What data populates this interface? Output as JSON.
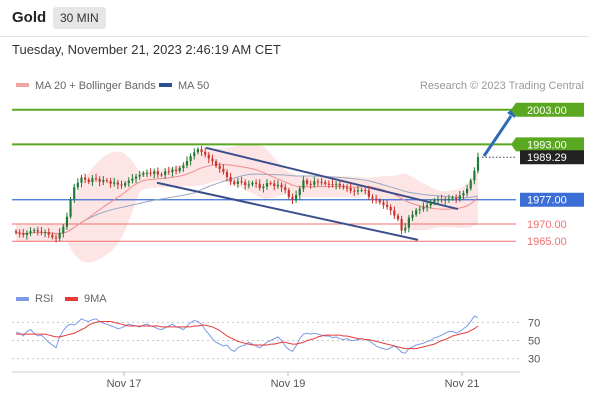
{
  "header": {
    "asset": "Gold",
    "timeframe": "30 MIN",
    "timestamp": "Tuesday, November 21, 2023 2:46:19 AM CET"
  },
  "legend": {
    "ma20_label": "MA 20 + Bollinger Bands",
    "ma50_label": "MA 50",
    "credit": "Research © 2023 Trading Central"
  },
  "rsi_legend": {
    "rsi_label": "RSI",
    "ma_label": "9MA"
  },
  "colors": {
    "bull": "#1e7a35",
    "bear": "#c8332c",
    "ma20": "#f08c8c",
    "bollinger": "#fde0e0",
    "ma50": "#9aa8c0",
    "channel": "#3a4f8c",
    "green_level": "#5aa820",
    "blue_level": "#3b6fd6",
    "red_level": "#f07070",
    "rsi": "#7b9be6",
    "rsi_ma": "#e83a3a",
    "arrow": "#2e6bb5",
    "price_tag": "#222222"
  },
  "chart_data": [
    {
      "type": "candlestick",
      "x_ticks": [
        "Nov 17",
        "Nov 19",
        "Nov 21"
      ],
      "y_range": [
        1955,
        2012
      ],
      "levels": [
        {
          "value": 2003.0,
          "label": "2003.00",
          "kind": "resistance",
          "color": "green"
        },
        {
          "value": 1993.0,
          "label": "1993.00",
          "kind": "resistance",
          "color": "green"
        },
        {
          "value": 1989.29,
          "label": "1989.29",
          "kind": "last_price",
          "color": "black"
        },
        {
          "value": 1977.0,
          "label": "1977.00",
          "kind": "pivot",
          "color": "blue"
        },
        {
          "value": 1970.0,
          "label": "1970.00",
          "kind": "support",
          "color": "red"
        },
        {
          "value": 1965.0,
          "label": "1965.00",
          "kind": "support",
          "color": "red"
        }
      ],
      "close": [
        1967.5,
        1967.2,
        1966.8,
        1967.4,
        1967.9,
        1968.2,
        1967.8,
        1967.5,
        1967.6,
        1966.9,
        1966.1,
        1965.8,
        1967.4,
        1969.2,
        1972.1,
        1977.2,
        1980.6,
        1981.9,
        1983.4,
        1982.8,
        1982.1,
        1983.2,
        1983.0,
        1982.2,
        1982.7,
        1982.4,
        1981.6,
        1982.0,
        1981.4,
        1981.1,
        1981.8,
        1982.5,
        1983.1,
        1983.7,
        1984.2,
        1984.7,
        1984.8,
        1984.5,
        1985.2,
        1984.3,
        1984.2,
        1985.2,
        1985.0,
        1985.7,
        1985.3,
        1986.2,
        1986.9,
        1988.2,
        1989.6,
        1990.7,
        1991.6,
        1990.8,
        1990.0,
        1988.9,
        1988.1,
        1986.8,
        1985.9,
        1985.0,
        1983.6,
        1982.2,
        1981.6,
        1982.3,
        1982.1,
        1981.2,
        1981.4,
        1981.9,
        1981.6,
        1980.4,
        1980.8,
        1981.8,
        1981.7,
        1980.9,
        1981.3,
        1980.6,
        1979.8,
        1977.8,
        1976.9,
        1978.3,
        1980.2,
        1982.6,
        1981.6,
        1981.3,
        1982.3,
        1982.2,
        1982.1,
        1981.6,
        1981.5,
        1981.3,
        1981.6,
        1981.0,
        1980.5,
        1980.4,
        1979.6,
        1979.4,
        1979.8,
        1979.8,
        1979.7,
        1977.8,
        1977.3,
        1976.8,
        1976.2,
        1975.5,
        1974.9,
        1973.9,
        1972.4,
        1971.4,
        1968.1,
        1968.9,
        1971.8,
        1972.7,
        1974.0,
        1974.3,
        1974.9,
        1975.4,
        1976.0,
        1976.9,
        1977.1,
        1976.9,
        1977.1,
        1977.3,
        1977.6,
        1977.2,
        1978.2,
        1978.9,
        1980.2,
        1982.6,
        1985.4,
        1989.3
      ]
    },
    {
      "type": "line",
      "name": "RSI",
      "y_ticks": [
        70,
        50,
        30
      ],
      "x_ticks": [
        "Nov 17",
        "Nov 19",
        "Nov 21"
      ],
      "reference_lines": [
        70,
        50,
        30
      ],
      "series": [
        {
          "name": "RSI",
          "values": [
            59,
            58,
            55,
            60,
            62,
            58,
            55,
            56,
            52,
            48,
            45,
            42,
            54,
            61,
            66,
            68,
            67,
            70,
            74,
            72,
            71,
            73,
            74,
            71,
            69,
            68,
            66,
            65,
            63,
            64,
            66,
            68,
            67,
            66,
            65,
            67,
            68,
            66,
            65,
            63,
            62,
            64,
            66,
            68,
            65,
            64,
            62,
            66,
            70,
            72,
            71,
            68,
            62,
            57,
            52,
            48,
            46,
            44,
            45,
            40,
            38,
            42,
            44,
            45,
            48,
            46,
            44,
            42,
            45,
            48,
            50,
            52,
            54,
            50,
            44,
            40,
            38,
            44,
            52,
            57,
            58,
            57,
            58,
            57,
            56,
            55,
            55,
            53,
            54,
            52,
            51,
            52,
            50,
            50,
            51,
            52,
            51,
            50,
            47,
            44,
            42,
            41,
            40,
            42,
            44,
            41,
            37,
            36,
            41,
            43,
            45,
            46,
            47,
            49,
            50,
            53,
            54,
            56,
            58,
            60,
            60,
            58,
            60,
            63,
            66,
            71,
            77,
            75
          ]
        },
        {
          "name": "9MA",
          "values": [
            57,
            57,
            57,
            57,
            57,
            57,
            57,
            57,
            57,
            56,
            55,
            54,
            54,
            55,
            56,
            57,
            58,
            60,
            62,
            64,
            67,
            69,
            70,
            71,
            71,
            71,
            71,
            70,
            69,
            68,
            67,
            66,
            66,
            66,
            66,
            66,
            66,
            66,
            66,
            66,
            65,
            65,
            65,
            65,
            65,
            65,
            65,
            65,
            65,
            66,
            66,
            67,
            67,
            66,
            65,
            63,
            61,
            58,
            55,
            53,
            51,
            49,
            48,
            47,
            46,
            45,
            45,
            45,
            45,
            45,
            46,
            46,
            47,
            48,
            48,
            47,
            46,
            46,
            47,
            48,
            50,
            51,
            52,
            54,
            55,
            56,
            56,
            56,
            56,
            56,
            55,
            55,
            54,
            53,
            52,
            52,
            51,
            51,
            50,
            49,
            48,
            47,
            46,
            45,
            44,
            43,
            42,
            41,
            41,
            41,
            41,
            42,
            43,
            44,
            45,
            46,
            48,
            50,
            51,
            53,
            55,
            56,
            57,
            58,
            59,
            61,
            63,
            66
          ]
        }
      ]
    }
  ]
}
